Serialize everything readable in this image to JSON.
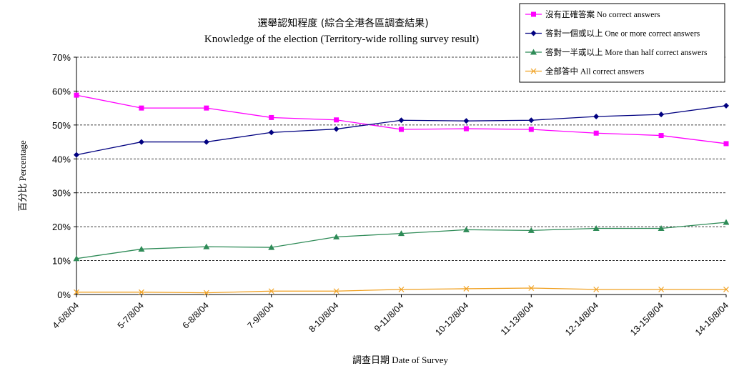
{
  "chart_data": {
    "type": "line",
    "title": "選舉認知程度 (綜合全港各區調查結果)",
    "subtitle": "Knowledge of the election (Territory-wide rolling survey result)",
    "xlabel": "調查日期 Date of Survey",
    "ylabel": "百分比 Percentage",
    "categories": [
      "4-6/8/04",
      "5-7/8/04",
      "6-8/8/04",
      "7-9/8/04",
      "8-10/8/04",
      "9-11/8/04",
      "10-12/8/04",
      "11-13/8/04",
      "12-14/8/04",
      "13-15/8/04",
      "14-16/8/04"
    ],
    "yticks": [
      "0%",
      "10%",
      "20%",
      "30%",
      "40%",
      "50%",
      "60%",
      "70%"
    ],
    "ylim": [
      0,
      70
    ],
    "grid": "horizontal dashed",
    "legend_position": "top-right",
    "series": [
      {
        "name": "沒有正確答案 No correct answers",
        "color": "#ff00ff",
        "marker": "square",
        "values": [
          58.8,
          55.0,
          55.0,
          52.2,
          51.5,
          48.7,
          48.9,
          48.7,
          47.6,
          46.9,
          44.5
        ]
      },
      {
        "name": "答對一個或以上 One or more correct answers",
        "color": "#000080",
        "marker": "diamond",
        "values": [
          41.2,
          45.0,
          45.0,
          47.8,
          48.8,
          51.4,
          51.2,
          51.4,
          52.5,
          53.1,
          55.7
        ]
      },
      {
        "name": "答對一半或以上 More than half correct answers",
        "color": "#2e8b57",
        "marker": "triangle",
        "values": [
          10.6,
          13.4,
          14.1,
          13.9,
          17.0,
          18.0,
          19.1,
          18.9,
          19.5,
          19.5,
          21.3
        ]
      },
      {
        "name": "全部答中 All correct answers",
        "color": "#f0a020",
        "marker": "x",
        "values": [
          0.7,
          0.7,
          0.5,
          1.0,
          1.0,
          1.5,
          1.7,
          1.9,
          1.5,
          1.5,
          1.5
        ]
      }
    ]
  }
}
